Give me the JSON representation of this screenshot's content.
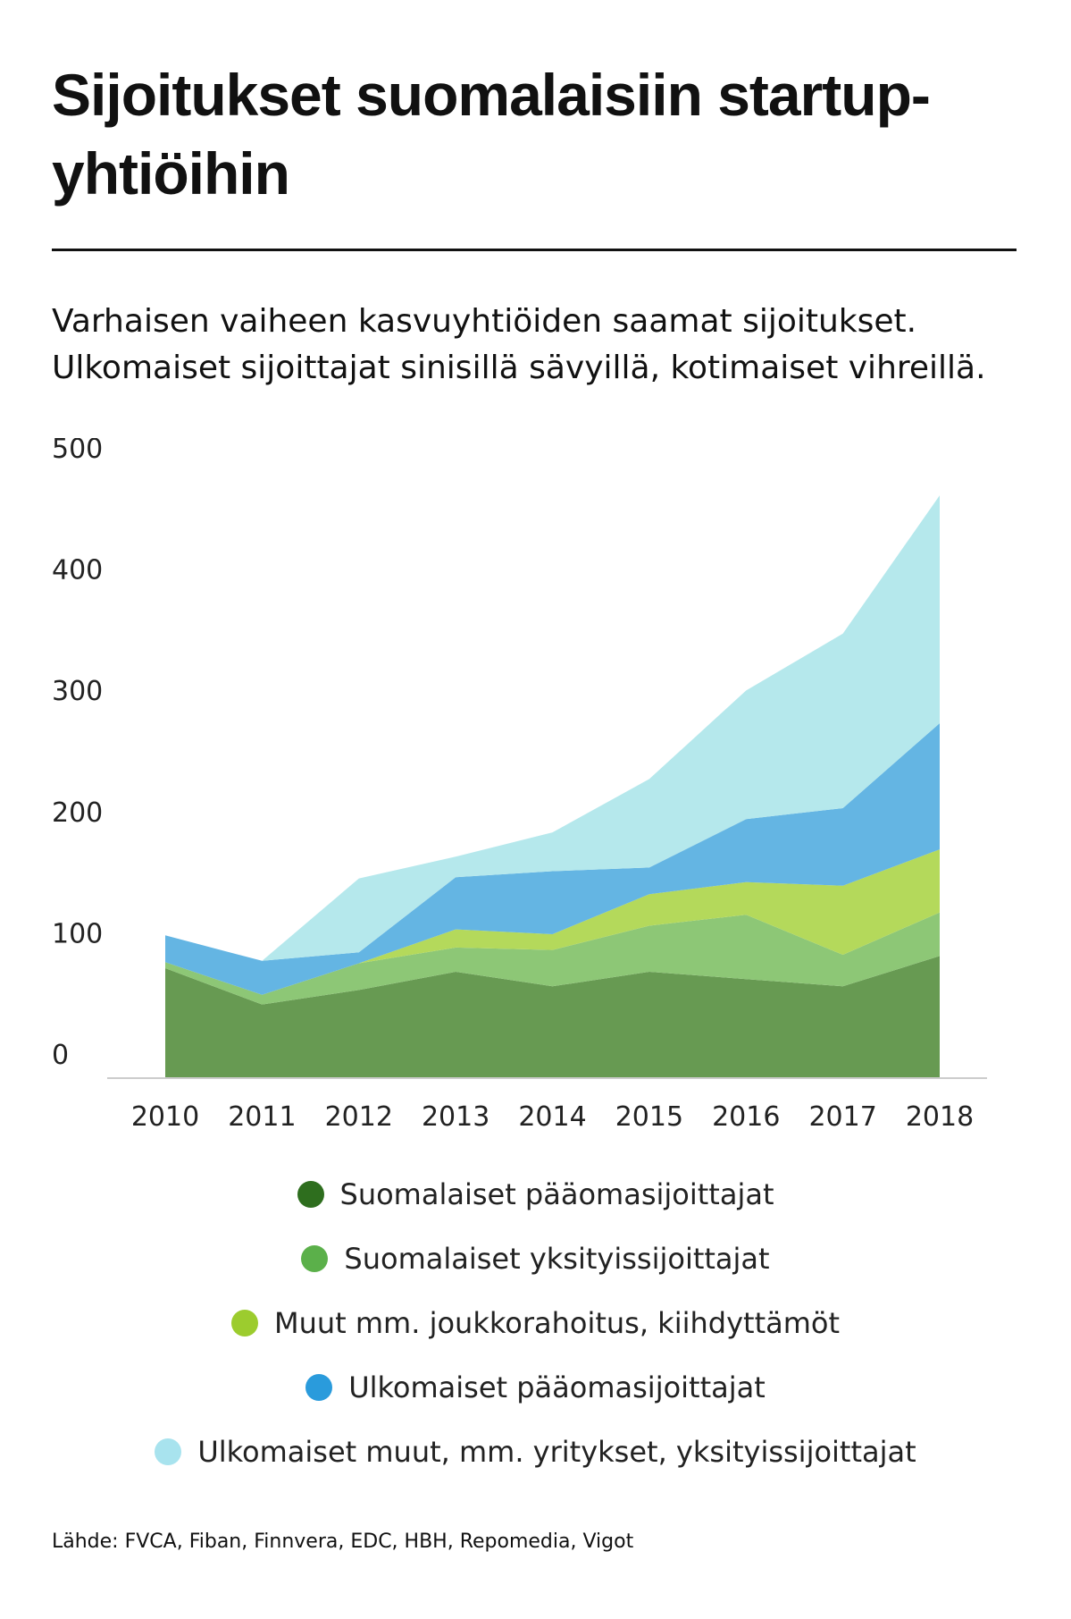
{
  "title": "Sijoitukset suomalaisiin startup-yhtiöihin",
  "subtitle": "Varhaisen vaiheen kasvuyhtiöiden saamat sijoitukset. Ulkomaiset sijoittajat sinisillä sävyillä, kotimaiset vihreillä.",
  "source": "Lähde: FVCA, Fiban, Finnvera, EDC, HBH, Repomedia, Vigot",
  "chart_data": {
    "type": "area",
    "stacked": true,
    "x": [
      2010,
      2011,
      2012,
      2013,
      2014,
      2015,
      2016,
      2017,
      2018
    ],
    "ylim": [
      0,
      500
    ],
    "yticks": [
      0,
      100,
      200,
      300,
      400,
      500
    ],
    "grid": false,
    "legend_position": "bottom",
    "series": [
      {
        "name": "Suomalaiset pääomasijoittajat",
        "color": "#679a52",
        "legend_color": "#2e6e1e",
        "values": [
          90,
          60,
          72,
          87,
          75,
          87,
          81,
          75,
          100
        ]
      },
      {
        "name": "Suomalaiset yksityissijoittajat",
        "color": "#8dc776",
        "legend_color": "#5bb04a",
        "values": [
          5,
          8,
          22,
          20,
          30,
          38,
          53,
          26,
          36
        ]
      },
      {
        "name": "Muut mm. joukkorahoitus, kiihdyttämöt",
        "color": "#b4d95b",
        "legend_color": "#9ccc2e",
        "values": [
          0,
          0,
          0,
          15,
          13,
          26,
          27,
          57,
          52
        ]
      },
      {
        "name": "Ulkomaiset pääomasijoittajat",
        "color": "#64b5e3",
        "legend_color": "#2a9bdc",
        "values": [
          22,
          28,
          9,
          43,
          52,
          22,
          52,
          64,
          104
        ]
      },
      {
        "name": "Ulkomaiset muut, mm. yritykset, yksityissijoittajat",
        "color": "#b5e8ec",
        "legend_color": "#a8e3ee",
        "values": [
          0,
          0,
          61,
          17,
          32,
          73,
          106,
          144,
          188
        ]
      }
    ]
  }
}
